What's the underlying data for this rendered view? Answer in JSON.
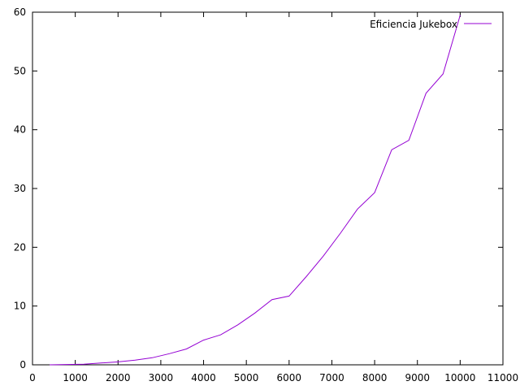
{
  "chart_data": {
    "type": "line",
    "title": "",
    "xlabel": "",
    "ylabel": "",
    "xlim": [
      0,
      11000
    ],
    "ylim": [
      0,
      60
    ],
    "x_ticks": [
      "0",
      "1000",
      "2000",
      "3000",
      "4000",
      "5000",
      "6000",
      "7000",
      "8000",
      "9000",
      "10000",
      "11000"
    ],
    "y_ticks": [
      "0",
      "10",
      "20",
      "30",
      "40",
      "50",
      "60"
    ],
    "grid": false,
    "legend_position": "top-right",
    "series": [
      {
        "name": "Eficiencia Jukebox",
        "color": "#9400d3",
        "points": [
          [
            400,
            0.0
          ],
          [
            800,
            0.05
          ],
          [
            1200,
            0.1
          ],
          [
            1600,
            0.3
          ],
          [
            2000,
            0.5
          ],
          [
            2400,
            0.8
          ],
          [
            2800,
            1.2
          ],
          [
            3200,
            1.9
          ],
          [
            3600,
            2.7
          ],
          [
            4000,
            4.2
          ],
          [
            4400,
            5.1
          ],
          [
            4800,
            6.8
          ],
          [
            5200,
            8.8
          ],
          [
            5600,
            11.1
          ],
          [
            6000,
            11.7
          ],
          [
            6400,
            15.0
          ],
          [
            6800,
            18.5
          ],
          [
            7200,
            22.4
          ],
          [
            7600,
            26.5
          ],
          [
            8000,
            29.3
          ],
          [
            8400,
            36.6
          ],
          [
            8800,
            38.2
          ],
          [
            9200,
            46.2
          ],
          [
            9600,
            49.5
          ],
          [
            10000,
            59.5
          ]
        ]
      }
    ]
  }
}
